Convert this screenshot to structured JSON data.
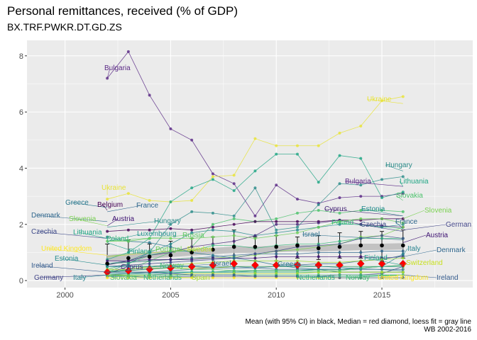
{
  "chart_data": {
    "type": "line",
    "title": "Personal remittances, received (% of GDP)",
    "subtitle": "BX.TRF.PWKR.DT.GD.ZS",
    "caption_line1": "Mean (with 95% CI) in black, Median = red diamond, loess fit = gray line",
    "caption_line2": "WB 2002-2016",
    "xlim": [
      1998.2,
      2019.3
    ],
    "ylim": [
      -0.25,
      8.55
    ],
    "x_ticks": [
      2000,
      2005,
      2010,
      2015
    ],
    "y_ticks": [
      0,
      2,
      4,
      6,
      8
    ],
    "grid": true,
    "colors": {
      "panel": "#EBEBEB",
      "grid_major": "#FFFFFF",
      "mean": "#000000",
      "median": "#FF0000",
      "loess": "#BEBEBE"
    },
    "x": [
      2002,
      2003,
      2004,
      2005,
      2006,
      2007,
      2008,
      2009,
      2010,
      2011,
      2012,
      2013,
      2014,
      2015,
      2016
    ],
    "series": [
      {
        "name": "Bulgaria",
        "color": "#5B2A86",
        "values": [
          7.2,
          8.15,
          6.6,
          5.4,
          5.0,
          3.8,
          3.45,
          2.3,
          3.4,
          2.9,
          2.75,
          2.95,
          3.0,
          3.0,
          3.1
        ]
      },
      {
        "name": "Ukraine",
        "color": "#E8E337",
        "values": [
          2.9,
          3.1,
          2.85,
          2.8,
          2.85,
          3.7,
          3.75,
          5.05,
          4.8,
          4.8,
          4.8,
          5.25,
          5.5,
          6.4,
          6.55
        ]
      },
      {
        "name": "Hungary",
        "color": "#2C8C8A",
        "values": [
          0.6,
          0.7,
          1.0,
          2.0,
          2.45,
          2.4,
          2.3,
          3.3,
          1.8,
          1.9,
          2.7,
          3.45,
          3.4,
          3.6,
          3.7
        ]
      },
      {
        "name": "Lithuania",
        "color": "#21A685",
        "values": [
          0.75,
          1.0,
          1.5,
          2.8,
          3.3,
          3.6,
          3.2,
          3.9,
          4.5,
          4.5,
          3.5,
          4.45,
          4.35,
          2.95,
          3.15
        ]
      },
      {
        "name": "Slovakia",
        "color": "#4CC26C",
        "values": [
          0.3,
          0.4,
          0.7,
          1.0,
          1.2,
          2.0,
          2.2,
          2.1,
          2.2,
          2.4,
          2.5,
          2.4,
          2.5,
          2.5,
          2.45
        ]
      },
      {
        "name": "Belgium",
        "color": "#440154",
        "values": [
          1.75,
          1.8,
          1.8,
          1.85,
          1.8,
          1.9,
          2.0,
          2.1,
          2.1,
          2.1,
          2.1,
          2.15,
          2.15,
          2.2,
          2.2
        ]
      },
      {
        "name": "Estonia",
        "color": "#238A8D",
        "values": [
          0.3,
          0.6,
          1.0,
          1.3,
          1.7,
          1.8,
          1.75,
          1.6,
          1.7,
          1.8,
          1.9,
          2.0,
          2.0,
          1.9,
          2.0
        ]
      },
      {
        "name": "Cyprus",
        "color": "#482878",
        "values": [
          0.55,
          0.7,
          0.9,
          1.0,
          1.2,
          1.3,
          1.4,
          1.6,
          2.0,
          2.0,
          2.05,
          2.15,
          2.0,
          1.95,
          1.9
        ]
      },
      {
        "name": "Slovenia",
        "color": "#7AD151",
        "values": [
          0.6,
          0.65,
          0.7,
          0.75,
          0.8,
          0.8,
          0.85,
          0.9,
          1.05,
          1.1,
          1.2,
          1.3,
          1.55,
          1.6,
          1.9
        ]
      },
      {
        "name": "France",
        "color": "#31688E",
        "values": [
          0.6,
          0.65,
          0.7,
          0.75,
          0.8,
          0.85,
          0.9,
          0.95,
          0.95,
          0.95,
          1.0,
          1.0,
          1.0,
          1.05,
          1.05
        ]
      },
      {
        "name": "Austria",
        "color": "#3B0F70",
        "values": [
          0.7,
          0.7,
          0.75,
          0.75,
          0.75,
          0.8,
          0.8,
          0.8,
          0.85,
          0.85,
          0.85,
          0.85,
          0.85,
          0.8,
          0.85
        ]
      },
      {
        "name": "Poland",
        "color": "#35B779",
        "values": [
          0.4,
          0.6,
          0.9,
          1.05,
          1.05,
          1.25,
          1.25,
          1.15,
          1.25,
          1.3,
          1.3,
          1.4,
          1.5,
          1.5,
          1.5
        ]
      },
      {
        "name": "Czechia",
        "color": "#3E4A89",
        "values": [
          0.5,
          0.55,
          0.6,
          0.65,
          0.7,
          0.75,
          0.8,
          0.95,
          1.05,
          1.2,
          1.25,
          1.3,
          1.5,
          1.6,
          1.5
        ]
      },
      {
        "name": "Germany",
        "color": "#414487",
        "values": [
          0.15,
          0.15,
          0.15,
          0.15,
          0.15,
          0.15,
          0.15,
          0.15,
          0.15,
          0.15,
          0.15,
          0.2,
          0.2,
          0.25,
          0.5
        ]
      },
      {
        "name": "Denmark",
        "color": "#31688E",
        "values": [
          0.2,
          0.25,
          0.3,
          0.35,
          0.4,
          0.45,
          0.5,
          0.45,
          0.5,
          0.55,
          0.6,
          0.6,
          0.7,
          0.75,
          0.9
        ]
      },
      {
        "name": "Italy",
        "color": "#26828E",
        "values": [
          0.15,
          0.2,
          0.2,
          0.25,
          0.3,
          0.3,
          0.3,
          0.35,
          0.35,
          0.35,
          0.4,
          0.4,
          0.45,
          0.5,
          0.95
        ]
      },
      {
        "name": "Switzerland",
        "color": "#C8E020",
        "values": [
          0.4,
          0.4,
          0.45,
          0.45,
          0.45,
          0.45,
          0.5,
          0.5,
          0.5,
          0.5,
          0.5,
          0.5,
          0.5,
          0.5,
          0.55
        ]
      },
      {
        "name": "Finland",
        "color": "#1F9E89",
        "values": [
          0.25,
          0.25,
          0.25,
          0.3,
          0.3,
          0.3,
          0.35,
          0.35,
          0.35,
          0.35,
          0.4,
          0.4,
          0.45,
          0.5,
          0.55
        ]
      },
      {
        "name": "Greece",
        "color": "#2A788E",
        "values": [
          1.55,
          1.4,
          1.35,
          1.2,
          1.0,
          0.9,
          0.8,
          0.7,
          0.55,
          0.45,
          0.4,
          0.3,
          0.3,
          0.3,
          0.3
        ]
      },
      {
        "name": "Portugal",
        "color": "#6CCE59",
        "values": [
          1.4,
          1.4,
          1.5,
          1.5,
          1.5,
          1.55,
          1.6,
          1.5,
          1.6,
          1.7,
          1.9,
          2.1,
          2.2,
          2.2,
          2.05
        ]
      },
      {
        "name": "Spain",
        "color": "#A0DA39",
        "values": [
          0.4,
          0.4,
          0.5,
          0.55,
          0.6,
          0.65,
          0.7,
          0.7,
          0.7,
          0.7,
          0.65,
          0.65,
          0.7,
          0.75,
          0.8
        ]
      },
      {
        "name": "Netherlands",
        "color": "#29AF7F",
        "values": [
          0.3,
          0.3,
          0.3,
          0.3,
          0.3,
          0.3,
          0.3,
          0.3,
          0.3,
          0.3,
          0.3,
          0.3,
          0.3,
          0.3,
          0.3
        ]
      },
      {
        "name": "Sweden",
        "color": "#BDDF26",
        "values": [
          0.2,
          0.2,
          0.2,
          0.2,
          0.25,
          0.25,
          0.25,
          0.25,
          0.25,
          0.25,
          0.3,
          0.3,
          0.3,
          0.3,
          0.3
        ]
      },
      {
        "name": "Norway",
        "color": "#3FBC73",
        "values": [
          0.2,
          0.2,
          0.2,
          0.2,
          0.2,
          0.2,
          0.2,
          0.2,
          0.2,
          0.2,
          0.2,
          0.2,
          0.2,
          0.2,
          0.2
        ]
      },
      {
        "name": "United Kingdom",
        "color": "#FDE725",
        "values": [
          0.1,
          0.1,
          0.1,
          0.1,
          0.1,
          0.1,
          0.1,
          0.1,
          0.1,
          0.1,
          0.1,
          0.1,
          0.1,
          0.1,
          0.1
        ]
      },
      {
        "name": "Ireland",
        "color": "#365C8D",
        "values": [
          0.3,
          0.3,
          0.3,
          0.25,
          0.2,
          0.2,
          0.2,
          0.15,
          0.15,
          0.15,
          0.15,
          0.1,
          0.1,
          0.1,
          0.1
        ]
      },
      {
        "name": "Israel",
        "color": "#2D708E",
        "values": [
          0.5,
          0.5,
          0.5,
          0.55,
          0.5,
          0.45,
          0.45,
          0.45,
          0.4,
          0.4,
          0.4,
          0.4,
          0.4,
          0.4,
          0.4
        ]
      },
      {
        "name": "Russia",
        "color": "#5DC863",
        "values": [
          0.35,
          0.35,
          0.4,
          0.45,
          0.4,
          0.4,
          0.35,
          0.35,
          0.35,
          0.35,
          0.35,
          0.35,
          0.45,
          0.5,
          0.5
        ]
      },
      {
        "name": "Luxembourg",
        "color": "#20928C",
        "values": [
          0.5,
          0.5,
          0.5,
          0.5,
          0.5,
          0.5,
          0.5,
          0.5,
          0.5,
          0.5,
          0.5,
          0.5,
          0.5,
          0.5,
          0.5
        ]
      }
    ],
    "mean": {
      "values": [
        0.6,
        0.8,
        0.85,
        0.9,
        1.0,
        1.1,
        1.2,
        1.2,
        1.2,
        1.25,
        1.15,
        1.2,
        1.25,
        1.25,
        1.25
      ],
      "ci_low": [
        0.2,
        0.4,
        0.45,
        0.5,
        0.55,
        0.6,
        0.65,
        0.7,
        0.7,
        0.8,
        0.75,
        0.8,
        0.8,
        0.7,
        0.8
      ],
      "ci_high": [
        1.3,
        1.45,
        1.3,
        1.4,
        1.5,
        1.55,
        1.8,
        1.55,
        1.6,
        1.55,
        1.6,
        1.7,
        1.75,
        1.75,
        1.8
      ]
    },
    "median": {
      "values": [
        0.3,
        0.35,
        0.4,
        0.45,
        0.5,
        0.55,
        0.6,
        0.55,
        0.55,
        0.55,
        0.55,
        0.55,
        0.6,
        0.6,
        0.6
      ]
    },
    "loess": {
      "values": [
        0.8,
        0.85,
        0.9,
        0.95,
        1.0,
        1.05,
        1.1,
        1.1,
        1.12,
        1.15,
        1.15,
        1.17,
        1.2,
        1.2,
        1.22
      ]
    },
    "left_labels": [
      {
        "name": "Bulgaria",
        "x": 2002,
        "y": 7.2
      },
      {
        "name": "Ukraine",
        "x": 2002,
        "y": 3.05
      },
      {
        "name": "Greece",
        "x": 2002,
        "y": 2.6
      },
      {
        "name": "Belgium",
        "x": 2002,
        "y": 2.5
      },
      {
        "name": "France",
        "x": 2002,
        "y": 2.45
      },
      {
        "name": "Denmark",
        "x": 2002,
        "y": 2.1
      },
      {
        "name": "Austria",
        "x": 2002,
        "y": 1.95
      },
      {
        "name": "Slovenia",
        "x": 2002,
        "y": 1.95
      },
      {
        "name": "Hungary",
        "x": 2002,
        "y": 1.9
      },
      {
        "name": "Czechia",
        "x": 2002,
        "y": 1.5
      },
      {
        "name": "Lithuania",
        "x": 2002,
        "y": 1.5
      },
      {
        "name": "Poland",
        "x": 2002,
        "y": 1.35
      },
      {
        "name": "Luxembourg",
        "x": 2002,
        "y": 1.4
      },
      {
        "name": "Russia",
        "x": 2002,
        "y": 1.4
      },
      {
        "name": "Finland",
        "x": 2002,
        "y": 1.35
      },
      {
        "name": "United Kingdom",
        "x": 2002,
        "y": 0.9
      },
      {
        "name": "Portugal",
        "x": 2002,
        "y": 0.85
      },
      {
        "name": "Sweden",
        "x": 2002,
        "y": 0.85
      },
      {
        "name": "Estonia",
        "x": 2002,
        "y": 0.55
      },
      {
        "name": "Ireland",
        "x": 2002,
        "y": 0.3
      },
      {
        "name": "Cyprus",
        "x": 2002,
        "y": 0.25
      },
      {
        "name": "Norway",
        "x": 2002,
        "y": 0.3
      },
      {
        "name": "Israel",
        "x": 2002,
        "y": 0.3
      },
      {
        "name": "Germany",
        "x": 2002,
        "y": -0.1
      },
      {
        "name": "Italy",
        "x": 2002,
        "y": -0.1
      },
      {
        "name": "Slovakia",
        "x": 2002,
        "y": -0.1
      },
      {
        "name": "Netherlands",
        "x": 2002,
        "y": -0.1
      },
      {
        "name": "Spain",
        "x": 2002,
        "y": -0.1
      }
    ],
    "right_labels": [
      {
        "name": "Ukraine",
        "x": 2016,
        "y": 6.3
      },
      {
        "name": "Hungary",
        "x": 2016,
        "y": 3.9
      },
      {
        "name": "Bulgaria",
        "x": 2016,
        "y": 3.35
      },
      {
        "name": "Lithuania",
        "x": 2016,
        "y": 3.35
      },
      {
        "name": "Slovakia",
        "x": 2016,
        "y": 2.85
      },
      {
        "name": "Cyprus",
        "x": 2016,
        "y": 2.3
      },
      {
        "name": "Estonia",
        "x": 2016,
        "y": 2.3
      },
      {
        "name": "Slovenia",
        "x": 2016,
        "y": 2.2
      },
      {
        "name": "Poland",
        "x": 2016,
        "y": 1.85
      },
      {
        "name": "France",
        "x": 2016,
        "y": 1.85
      },
      {
        "name": "Czechia",
        "x": 2016,
        "y": 1.75
      },
      {
        "name": "German",
        "x": 2016,
        "y": 1.8
      },
      {
        "name": "Israel",
        "x": 2016,
        "y": 1.45
      },
      {
        "name": "Austria",
        "x": 2016,
        "y": 1.35
      },
      {
        "name": "Italy",
        "x": 2016,
        "y": 0.9
      },
      {
        "name": "Denmark",
        "x": 2016,
        "y": 0.85
      },
      {
        "name": "Finland",
        "x": 2016,
        "y": 0.55
      },
      {
        "name": "Switzerland",
        "x": 2016,
        "y": 0.4
      },
      {
        "name": "Greece",
        "x": 2016,
        "y": 0.35
      },
      {
        "name": "Netherlands",
        "x": 2016,
        "y": -0.1
      },
      {
        "name": "Norway",
        "x": 2016,
        "y": -0.1
      },
      {
        "name": "United Kingdom",
        "x": 2016,
        "y": -0.1
      },
      {
        "name": "Ireland",
        "x": 2016,
        "y": -0.1
      }
    ]
  }
}
